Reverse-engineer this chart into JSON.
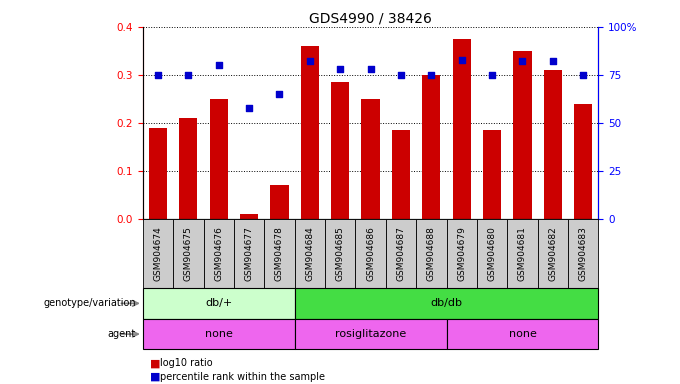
{
  "title": "GDS4990 / 38426",
  "samples": [
    "GSM904674",
    "GSM904675",
    "GSM904676",
    "GSM904677",
    "GSM904678",
    "GSM904684",
    "GSM904685",
    "GSM904686",
    "GSM904687",
    "GSM904688",
    "GSM904679",
    "GSM904680",
    "GSM904681",
    "GSM904682",
    "GSM904683"
  ],
  "log10_ratio": [
    0.19,
    0.21,
    0.25,
    0.01,
    0.07,
    0.36,
    0.285,
    0.25,
    0.185,
    0.3,
    0.375,
    0.185,
    0.35,
    0.31,
    0.24
  ],
  "percentile_rank": [
    75,
    75,
    80,
    58,
    65,
    82,
    78,
    78,
    75,
    75,
    83,
    75,
    82,
    82,
    75
  ],
  "ylim_left": [
    0,
    0.4
  ],
  "ylim_right": [
    0,
    100
  ],
  "yticks_left": [
    0,
    0.1,
    0.2,
    0.3,
    0.4
  ],
  "yticks_right": [
    0,
    25,
    50,
    75,
    100
  ],
  "bar_color": "#cc0000",
  "dot_color": "#0000cc",
  "genotype_groups": [
    {
      "label": "db/+",
      "start": 0,
      "end": 5,
      "color": "#ccffcc"
    },
    {
      "label": "db/db",
      "start": 5,
      "end": 15,
      "color": "#44dd44"
    }
  ],
  "agent_groups": [
    {
      "label": "none",
      "start": 0,
      "end": 5
    },
    {
      "label": "rosiglitazone",
      "start": 5,
      "end": 10
    },
    {
      "label": "none",
      "start": 10,
      "end": 15
    }
  ],
  "agent_color": "#ee66ee",
  "sample_box_color": "#cccccc",
  "legend_bar_label": "log10 ratio",
  "legend_dot_label": "percentile rank within the sample",
  "genotype_label": "genotype/variation",
  "agent_label": "agent",
  "title_fontsize": 10,
  "tick_fontsize": 6.5,
  "label_fontsize": 8,
  "annot_fontsize": 8
}
